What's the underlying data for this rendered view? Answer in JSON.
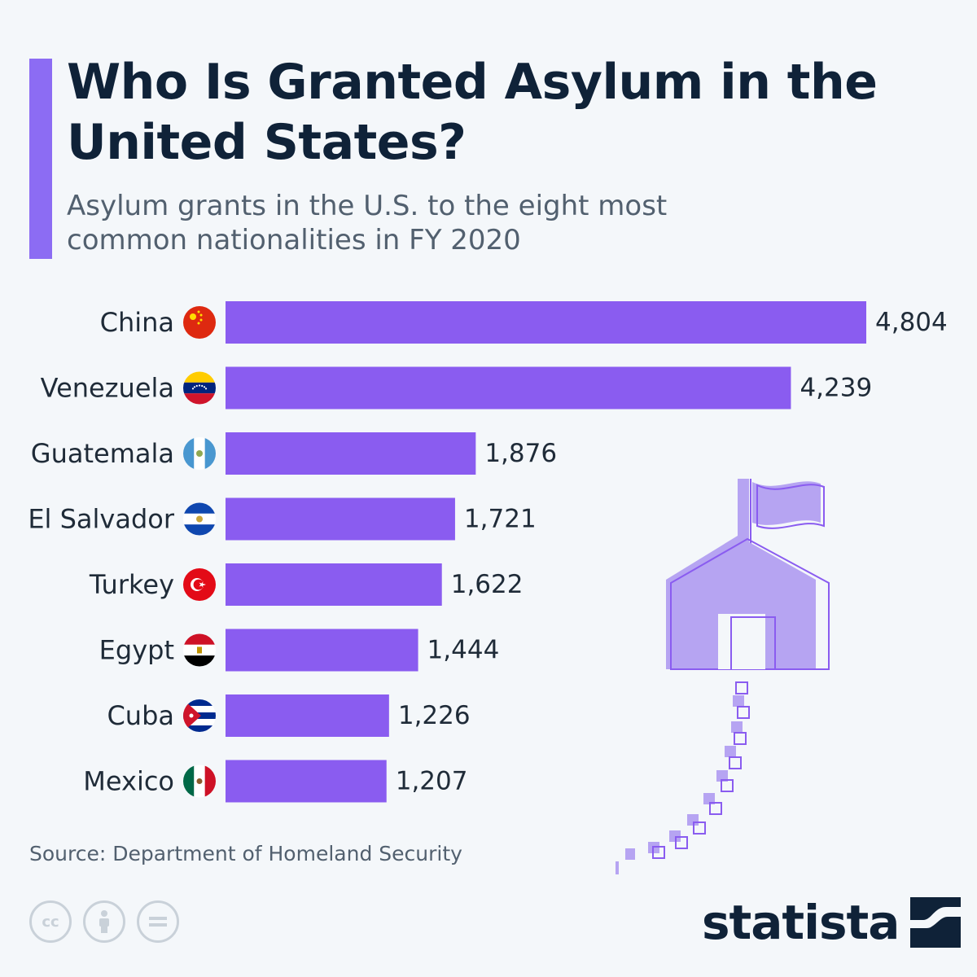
{
  "title": "Who Is Granted Asylum in the United States?",
  "subtitle": "Asylum grants in the U.S. to the eight most common nationalities in FY 2020",
  "source": "Source: Department of Homeland Security",
  "brand": "statista",
  "license_icons": [
    "cc-icon",
    "attribution-icon",
    "no-derivatives-icon"
  ],
  "colors": {
    "bar": "#8a5cf0",
    "accent": "#8c6cf3",
    "title": "#0f2238",
    "text": "#1f2b38",
    "illustration": "#b6a4f2"
  },
  "chart_data": {
    "type": "bar",
    "orientation": "horizontal",
    "categories": [
      "China",
      "Venezuela",
      "Guatemala",
      "El Salvador",
      "Turkey",
      "Egypt",
      "Cuba",
      "Mexico"
    ],
    "values": [
      4804,
      4239,
      1876,
      1721,
      1622,
      1444,
      1226,
      1207
    ],
    "value_labels": [
      "4,804",
      "4,239",
      "1,876",
      "1,721",
      "1,622",
      "1,444",
      "1,226",
      "1,207"
    ],
    "flag_icons": [
      "china-flag-icon",
      "venezuela-flag-icon",
      "guatemala-flag-icon",
      "el-salvador-flag-icon",
      "turkey-flag-icon",
      "egypt-flag-icon",
      "cuba-flag-icon",
      "mexico-flag-icon"
    ],
    "xlim": [
      0,
      4804
    ],
    "grid": false,
    "legend": "none"
  }
}
